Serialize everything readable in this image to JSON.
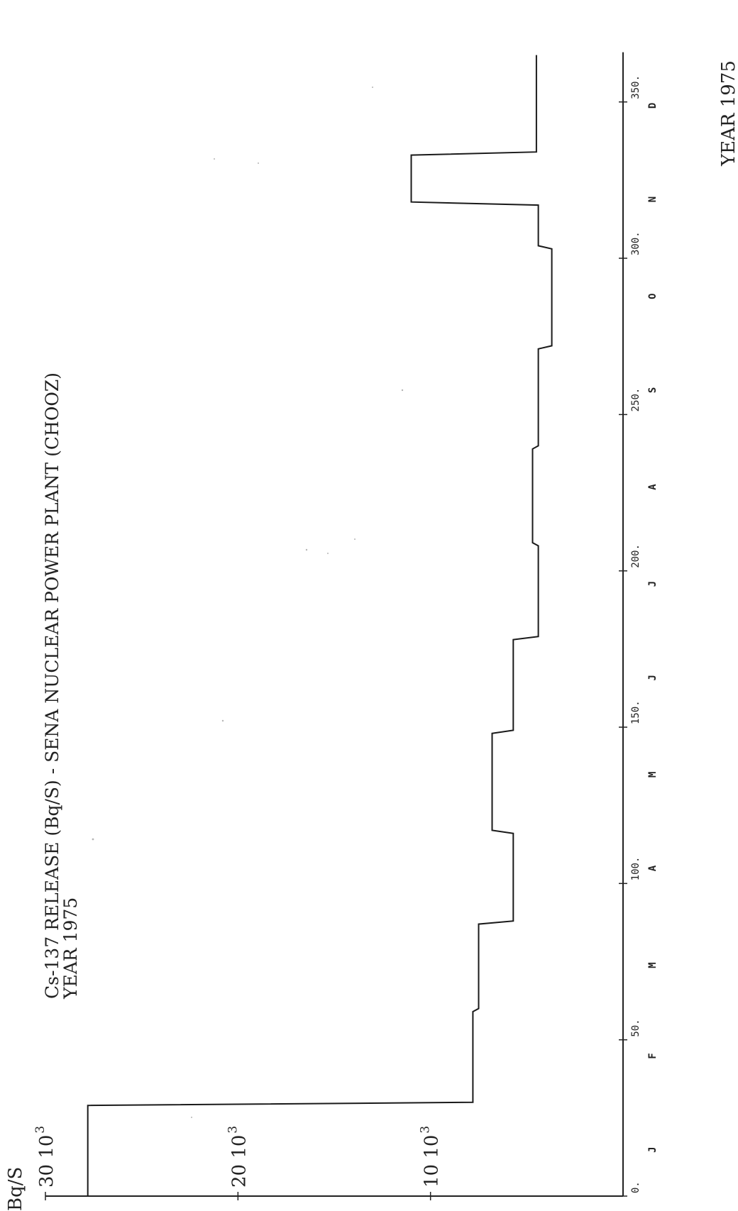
{
  "chart_data": {
    "type": "line",
    "step": true,
    "title": "Cs-137 RELEASE (Bq/S) - SENA NUCLEAR POWER PLANT (CHOOZ)",
    "subtitle": "YEAR 1975",
    "xlabel": "YEAR 1975",
    "ylabel": "Bq/S",
    "xlim": [
      0,
      365
    ],
    "ylim": [
      0,
      30000
    ],
    "x_ticks": [
      0,
      50,
      100,
      150,
      200,
      250,
      300,
      350
    ],
    "x_tick_labels": [
      "0.",
      "50.",
      "100.",
      "150.",
      "200.",
      "250.",
      "300.",
      "350."
    ],
    "y_ticks": [
      10000,
      20000,
      30000
    ],
    "y_tick_labels": [
      "10 10",
      "20 10",
      "30 10"
    ],
    "y_tick_exponent": "3",
    "month_labels": [
      {
        "label": "J",
        "x": 15
      },
      {
        "label": "F",
        "x": 45
      },
      {
        "label": "M",
        "x": 74
      },
      {
        "label": "A",
        "x": 105
      },
      {
        "label": "M",
        "x": 135
      },
      {
        "label": "J",
        "x": 166
      },
      {
        "label": "J",
        "x": 196
      },
      {
        "label": "A",
        "x": 227
      },
      {
        "label": "S",
        "x": 258
      },
      {
        "label": "O",
        "x": 288
      },
      {
        "label": "N",
        "x": 319
      },
      {
        "label": "D",
        "x": 349
      }
    ],
    "grid": false,
    "series": [
      {
        "x": [
          0,
          29,
          30,
          59,
          60,
          87,
          88,
          116,
          117,
          148,
          149,
          178,
          179,
          208,
          209,
          239,
          240,
          271,
          272,
          303,
          304,
          317,
          318,
          333,
          334,
          365
        ],
        "y": [
          27800,
          27800,
          7800,
          7800,
          7500,
          7500,
          5700,
          5700,
          6800,
          6800,
          5700,
          5700,
          4400,
          4400,
          4700,
          4700,
          4400,
          4400,
          3700,
          3700,
          4400,
          4400,
          11000,
          11000,
          4500,
          4500
        ]
      }
    ]
  }
}
